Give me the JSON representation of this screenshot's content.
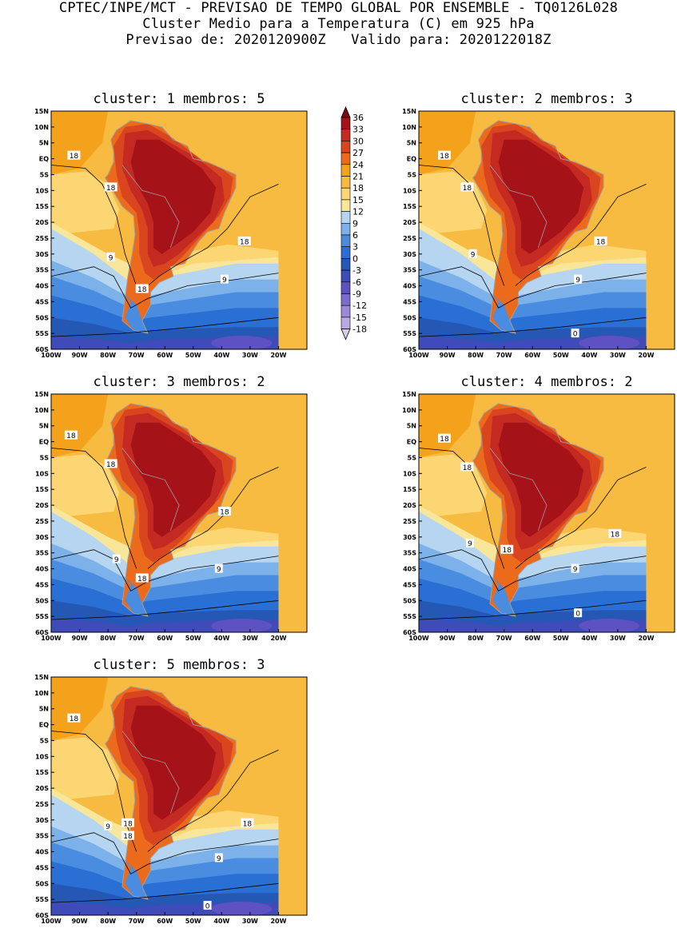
{
  "header": {
    "line1": "CPTEC/INPE/MCT - PREVISAO DE TEMPO GLOBAL POR ENSEMBLE - TQ0126L028",
    "line2": "Cluster Medio para a Temperatura (C) em 925 hPa",
    "line3": "Previsao de: 2020120900Z   Valido para: 2020122018Z"
  },
  "lat_ticks": [
    "15N",
    "10N",
    "5N",
    "EQ",
    "5S",
    "10S",
    "15S",
    "20S",
    "25S",
    "30S",
    "35S",
    "40S",
    "45S",
    "50S",
    "55S",
    "60S"
  ],
  "lon_ticks": [
    "100W",
    "90W",
    "80W",
    "70W",
    "60W",
    "50W",
    "40W",
    "30W",
    "20W"
  ],
  "legend": {
    "levels": [
      "36",
      "33",
      "30",
      "27",
      "24",
      "21",
      "18",
      "15",
      "12",
      "9",
      "6",
      "3",
      "0",
      "-3",
      "-6",
      "-9",
      "-12",
      "-15",
      "-18"
    ],
    "colors": [
      "#7a0b10",
      "#a51218",
      "#c42a22",
      "#d8451f",
      "#ec6a1c",
      "#f4a21b",
      "#f6bb40",
      "#fbd672",
      "#f8e79a",
      "#b6d5f0",
      "#7db1e9",
      "#4a8de0",
      "#2a6fd4",
      "#2557b4",
      "#3f4bb8",
      "#5e52c3",
      "#7b6ccf",
      "#9a8ad9",
      "#b9aae2",
      "#d6cceb"
    ]
  },
  "panels": [
    {
      "title": "cluster: 1   membros: 5",
      "labels": [
        {
          "text": "18",
          "lon": -92,
          "lat": 1
        },
        {
          "text": "18",
          "lon": -79,
          "lat": -9
        },
        {
          "text": "18",
          "lon": -32,
          "lat": -26
        },
        {
          "text": "9",
          "lon": -79,
          "lat": -31
        },
        {
          "text": "9",
          "lon": -39,
          "lat": -38
        },
        {
          "text": "18",
          "lon": -68,
          "lat": -41
        }
      ]
    },
    {
      "title": "cluster: 2   membros: 3",
      "labels": [
        {
          "text": "18",
          "lon": -91,
          "lat": 1
        },
        {
          "text": "18",
          "lon": -83,
          "lat": -9
        },
        {
          "text": "18",
          "lon": -36,
          "lat": -26
        },
        {
          "text": "9",
          "lon": -81,
          "lat": -30
        },
        {
          "text": "9",
          "lon": -44,
          "lat": -38
        },
        {
          "text": "0",
          "lon": -45,
          "lat": -55
        }
      ]
    },
    {
      "title": "cluster: 3   membros: 2",
      "labels": [
        {
          "text": "18",
          "lon": -93,
          "lat": 2
        },
        {
          "text": "18",
          "lon": -79,
          "lat": -7
        },
        {
          "text": "18",
          "lon": -39,
          "lat": -22
        },
        {
          "text": "9",
          "lon": -77,
          "lat": -37
        },
        {
          "text": "9",
          "lon": -41,
          "lat": -40
        },
        {
          "text": "18",
          "lon": -68,
          "lat": -43
        }
      ]
    },
    {
      "title": "cluster: 4   membros: 2",
      "labels": [
        {
          "text": "18",
          "lon": -91,
          "lat": 1
        },
        {
          "text": "18",
          "lon": -83,
          "lat": -8
        },
        {
          "text": "18",
          "lon": -31,
          "lat": -29
        },
        {
          "text": "9",
          "lon": -82,
          "lat": -32
        },
        {
          "text": "9",
          "lon": -45,
          "lat": -40
        },
        {
          "text": "18",
          "lon": -69,
          "lat": -34
        },
        {
          "text": "0",
          "lon": -44,
          "lat": -54
        }
      ]
    },
    {
      "title": "cluster: 5   membros: 3",
      "labels": [
        {
          "text": "18",
          "lon": -92,
          "lat": 2
        },
        {
          "text": "9",
          "lon": -80,
          "lat": -32
        },
        {
          "text": "18",
          "lon": -73,
          "lat": -31
        },
        {
          "text": "18",
          "lon": -73,
          "lat": -35
        },
        {
          "text": "18",
          "lon": -31,
          "lat": -31
        },
        {
          "text": "9",
          "lon": -41,
          "lat": -42
        },
        {
          "text": "0",
          "lon": -45,
          "lat": -57
        }
      ]
    }
  ]
}
